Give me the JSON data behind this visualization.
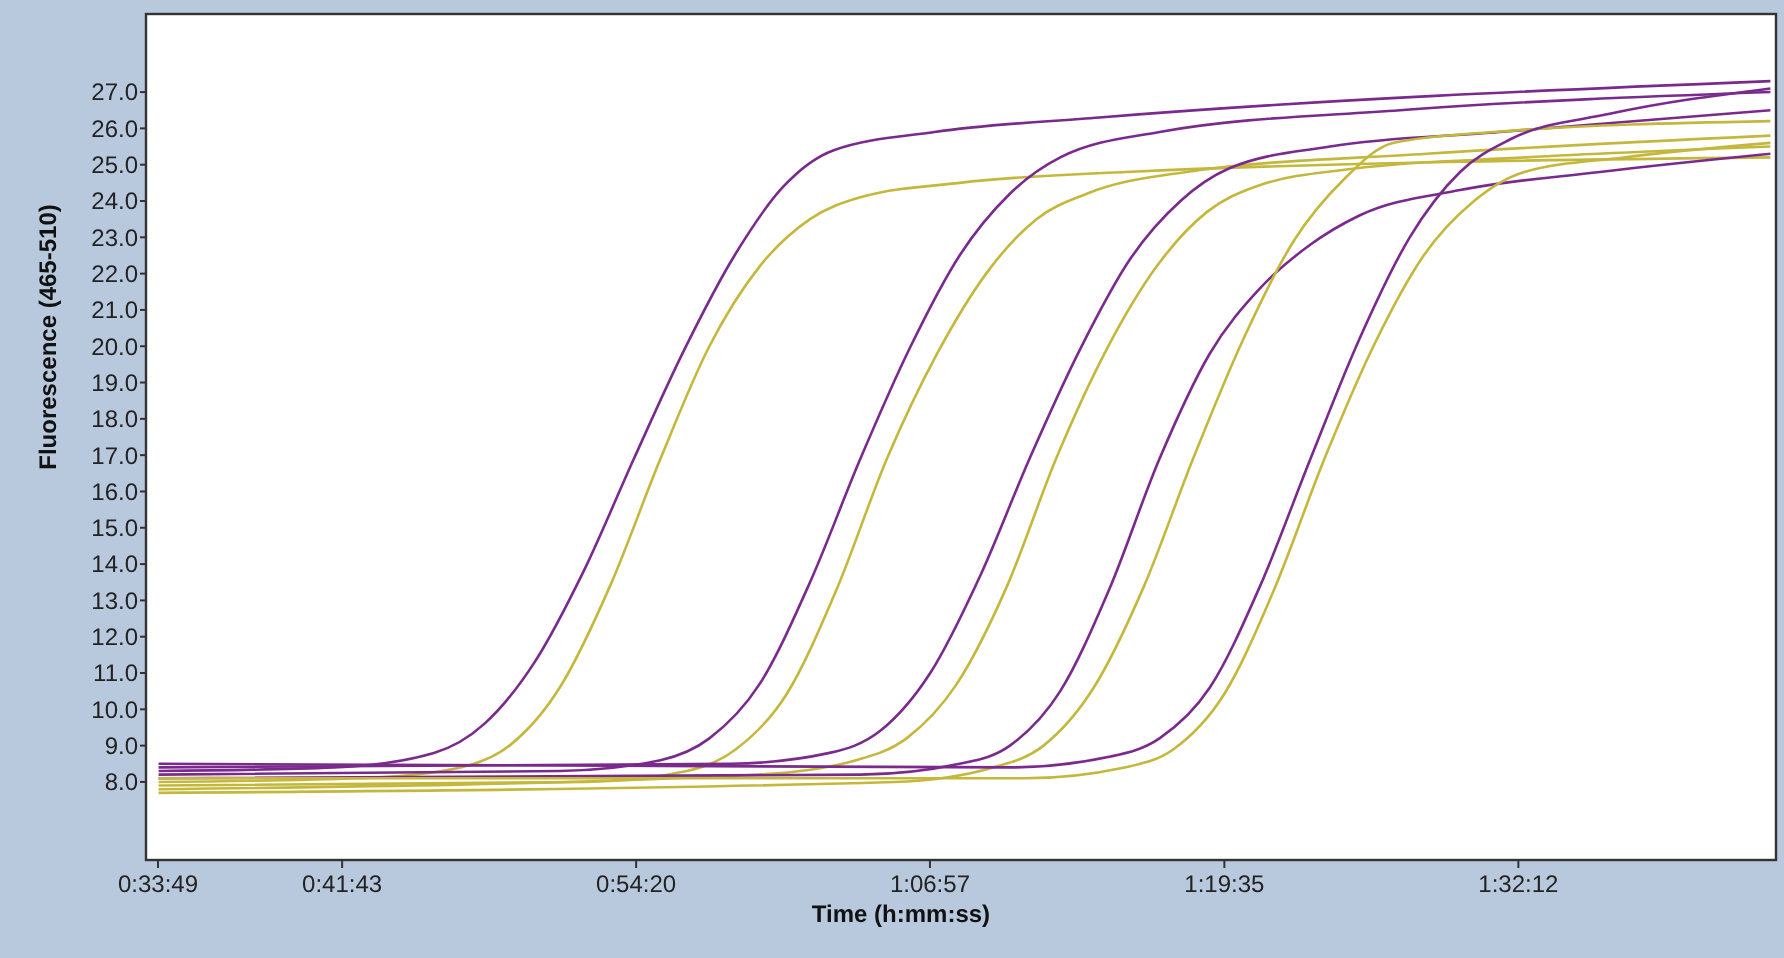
{
  "chart_data": {
    "type": "line",
    "xlabel": "Time (h:mm:ss)",
    "ylabel": "Fluorescence (465-510)",
    "xlim": [
      0.555,
      1.721
    ],
    "ylim": [
      5.85,
      29.15
    ],
    "xticks": [
      {
        "value": 0.5636,
        "label": "0:33:49"
      },
      {
        "value": 0.6953,
        "label": "0:41:43"
      },
      {
        "value": 0.9056,
        "label": "0:54:20"
      },
      {
        "value": 1.1158,
        "label": "1:06:57"
      },
      {
        "value": 1.3264,
        "label": "1:19:35"
      },
      {
        "value": 1.5367,
        "label": "1:32:12"
      }
    ],
    "yticks": [
      {
        "value": 8,
        "label": "8.0"
      },
      {
        "value": 9,
        "label": "9.0"
      },
      {
        "value": 10,
        "label": "10.0"
      },
      {
        "value": 11,
        "label": "11.0"
      },
      {
        "value": 12,
        "label": "12.0"
      },
      {
        "value": 13,
        "label": "13.0"
      },
      {
        "value": 14,
        "label": "14.0"
      },
      {
        "value": 15,
        "label": "15.0"
      },
      {
        "value": 16,
        "label": "16.0"
      },
      {
        "value": 17,
        "label": "17.0"
      },
      {
        "value": 18,
        "label": "18.0"
      },
      {
        "value": 19,
        "label": "19.0"
      },
      {
        "value": 20,
        "label": "20.0"
      },
      {
        "value": 21,
        "label": "21.0"
      },
      {
        "value": 22,
        "label": "22.0"
      },
      {
        "value": 23,
        "label": "23.0"
      },
      {
        "value": 24,
        "label": "24.0"
      },
      {
        "value": 25,
        "label": "25.0"
      },
      {
        "value": 26,
        "label": "26.0"
      },
      {
        "value": 27,
        "label": "27.0"
      }
    ],
    "line_style": "solid",
    "series": [
      {
        "color": "#7a2a8c",
        "x": [
          0.564,
          0.69,
          0.761,
          0.797,
          0.833,
          0.868,
          0.904,
          0.94,
          0.976,
          1.011,
          1.047,
          1.119,
          1.237,
          1.717
        ],
        "values": [
          8.3,
          8.4,
          8.8,
          9.6,
          11.3,
          13.8,
          16.9,
          19.9,
          22.5,
          24.4,
          25.4,
          25.9,
          26.3,
          27.3
        ]
      },
      {
        "color": "#c4b83c",
        "x": [
          0.564,
          0.708,
          0.78,
          0.815,
          0.851,
          0.887,
          0.923,
          0.958,
          0.994,
          1.03,
          1.066,
          1.137,
          1.256,
          1.717
        ],
        "values": [
          8.0,
          8.1,
          8.4,
          9.0,
          10.6,
          13.4,
          16.9,
          20.0,
          22.2,
          23.5,
          24.1,
          24.5,
          24.8,
          25.2
        ]
      },
      {
        "color": "#7a2a8c",
        "x": [
          0.564,
          0.851,
          0.923,
          0.958,
          0.994,
          1.03,
          1.066,
          1.102,
          1.137,
          1.173,
          1.209,
          1.28,
          1.452,
          1.717
        ],
        "values": [
          8.2,
          8.3,
          8.6,
          9.2,
          10.7,
          13.5,
          16.9,
          20.0,
          22.5,
          24.2,
          25.2,
          25.9,
          26.5,
          27.0
        ]
      },
      {
        "color": "#c4b83c",
        "x": [
          0.564,
          0.87,
          0.942,
          0.977,
          1.013,
          1.049,
          1.085,
          1.121,
          1.156,
          1.192,
          1.228,
          1.299,
          1.471,
          1.717
        ],
        "values": [
          7.9,
          8.0,
          8.3,
          8.9,
          10.4,
          13.3,
          16.9,
          19.8,
          22.0,
          23.5,
          24.2,
          24.8,
          25.3,
          25.8
        ]
      },
      {
        "color": "#7a2a8c",
        "x": [
          0.564,
          0.973,
          1.044,
          1.08,
          1.116,
          1.152,
          1.187,
          1.223,
          1.259,
          1.295,
          1.33,
          1.402,
          1.523,
          1.717
        ],
        "values": [
          8.4,
          8.5,
          8.8,
          9.4,
          11.0,
          13.7,
          16.9,
          19.9,
          22.4,
          24.0,
          24.9,
          25.5,
          25.9,
          26.5
        ]
      },
      {
        "color": "#c4b83c",
        "x": [
          0.564,
          0.992,
          1.063,
          1.099,
          1.135,
          1.171,
          1.206,
          1.242,
          1.278,
          1.314,
          1.349,
          1.421,
          1.542,
          1.717
        ],
        "values": [
          7.8,
          8.2,
          8.6,
          9.2,
          10.7,
          13.4,
          16.9,
          19.9,
          22.2,
          23.7,
          24.4,
          24.9,
          25.2,
          25.5
        ]
      },
      {
        "color": "#7a2a8c",
        "x": [
          0.564,
          1.066,
          1.137,
          1.173,
          1.209,
          1.244,
          1.28,
          1.316,
          1.352,
          1.388,
          1.423,
          1.495,
          1.595,
          1.717
        ],
        "values": [
          8.1,
          8.2,
          8.5,
          9.0,
          10.5,
          13.3,
          16.9,
          19.8,
          21.6,
          22.8,
          23.6,
          24.3,
          24.8,
          25.3
        ]
      },
      {
        "color": "#c4b83c",
        "x": [
          0.564,
          1.09,
          1.161,
          1.197,
          1.233,
          1.269,
          1.304,
          1.34,
          1.376,
          1.412,
          1.447,
          1.519,
          1.717
        ],
        "values": [
          7.7,
          8.0,
          8.4,
          9.0,
          10.6,
          13.4,
          16.9,
          20.2,
          22.9,
          24.6,
          25.6,
          25.9,
          26.2
        ]
      },
      {
        "color": "#7a2a8c",
        "x": [
          0.564,
          1.173,
          1.245,
          1.28,
          1.316,
          1.352,
          1.388,
          1.423,
          1.459,
          1.495,
          1.531,
          1.602,
          1.717
        ],
        "values": [
          8.5,
          8.4,
          8.7,
          9.2,
          10.6,
          13.4,
          16.9,
          20.2,
          23.0,
          24.8,
          25.7,
          26.4,
          27.1
        ]
      },
      {
        "color": "#c4b83c",
        "x": [
          0.564,
          1.183,
          1.255,
          1.29,
          1.326,
          1.362,
          1.398,
          1.433,
          1.469,
          1.505,
          1.541,
          1.612,
          1.717
        ],
        "values": [
          8.1,
          8.1,
          8.4,
          8.9,
          10.4,
          13.3,
          16.9,
          20.0,
          22.5,
          24.0,
          24.8,
          25.2,
          25.6
        ]
      }
    ]
  }
}
